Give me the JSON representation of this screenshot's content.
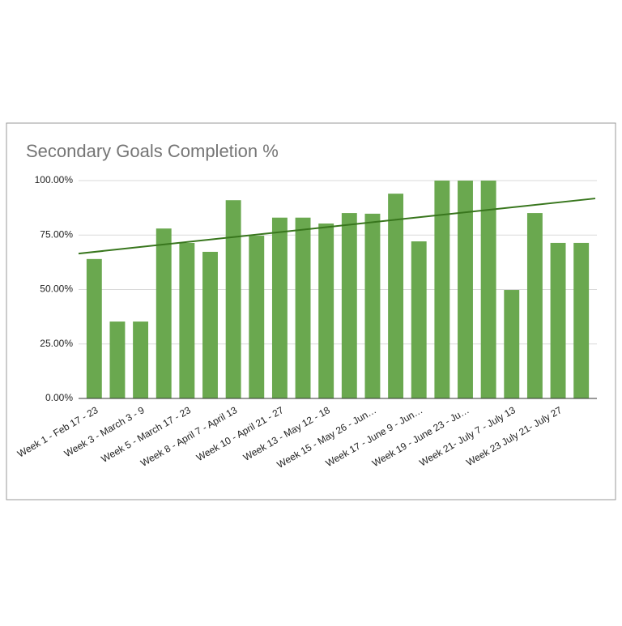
{
  "chart_data": {
    "type": "bar",
    "title": "Secondary Goals Completion %",
    "categories": [
      "Week 1 - Feb 17 - 23",
      null,
      "Week 3 - March 3 - 9",
      null,
      "Week 5 - March 17 - 23",
      null,
      "Week 8 - April 7 - April 13",
      null,
      "Week 10 - April 21 - 27",
      null,
      "Week 13 - May 12 - 18",
      null,
      "Week 15 - May 26 - Jun…",
      null,
      "Week 17 - June 9 - Jun…",
      null,
      "Week 19 - June 23 - Ju…",
      null,
      "Week 21- July 7 - July 13",
      null,
      "Week 23 July 21- July 27",
      null
    ],
    "values": [
      64,
      35.3,
      35.3,
      78,
      71.4,
      67.3,
      91,
      74.7,
      83,
      83,
      80.3,
      85.1,
      84.8,
      94,
      72.1,
      100,
      100,
      100,
      49.8,
      85.1,
      71.4,
      71.4
    ],
    "color": "#6aa84f",
    "trendline": {
      "start": 66.5,
      "end": 91.8,
      "color": "#38761d"
    },
    "ylim": [
      0,
      100
    ],
    "yticks": [
      {
        "value": 0,
        "label": "0.00%"
      },
      {
        "value": 25,
        "label": "25.00%"
      },
      {
        "value": 50,
        "label": "50.00%"
      },
      {
        "value": 75,
        "label": "75.00%"
      },
      {
        "value": 100,
        "label": "100.00%"
      }
    ],
    "grid": true
  }
}
